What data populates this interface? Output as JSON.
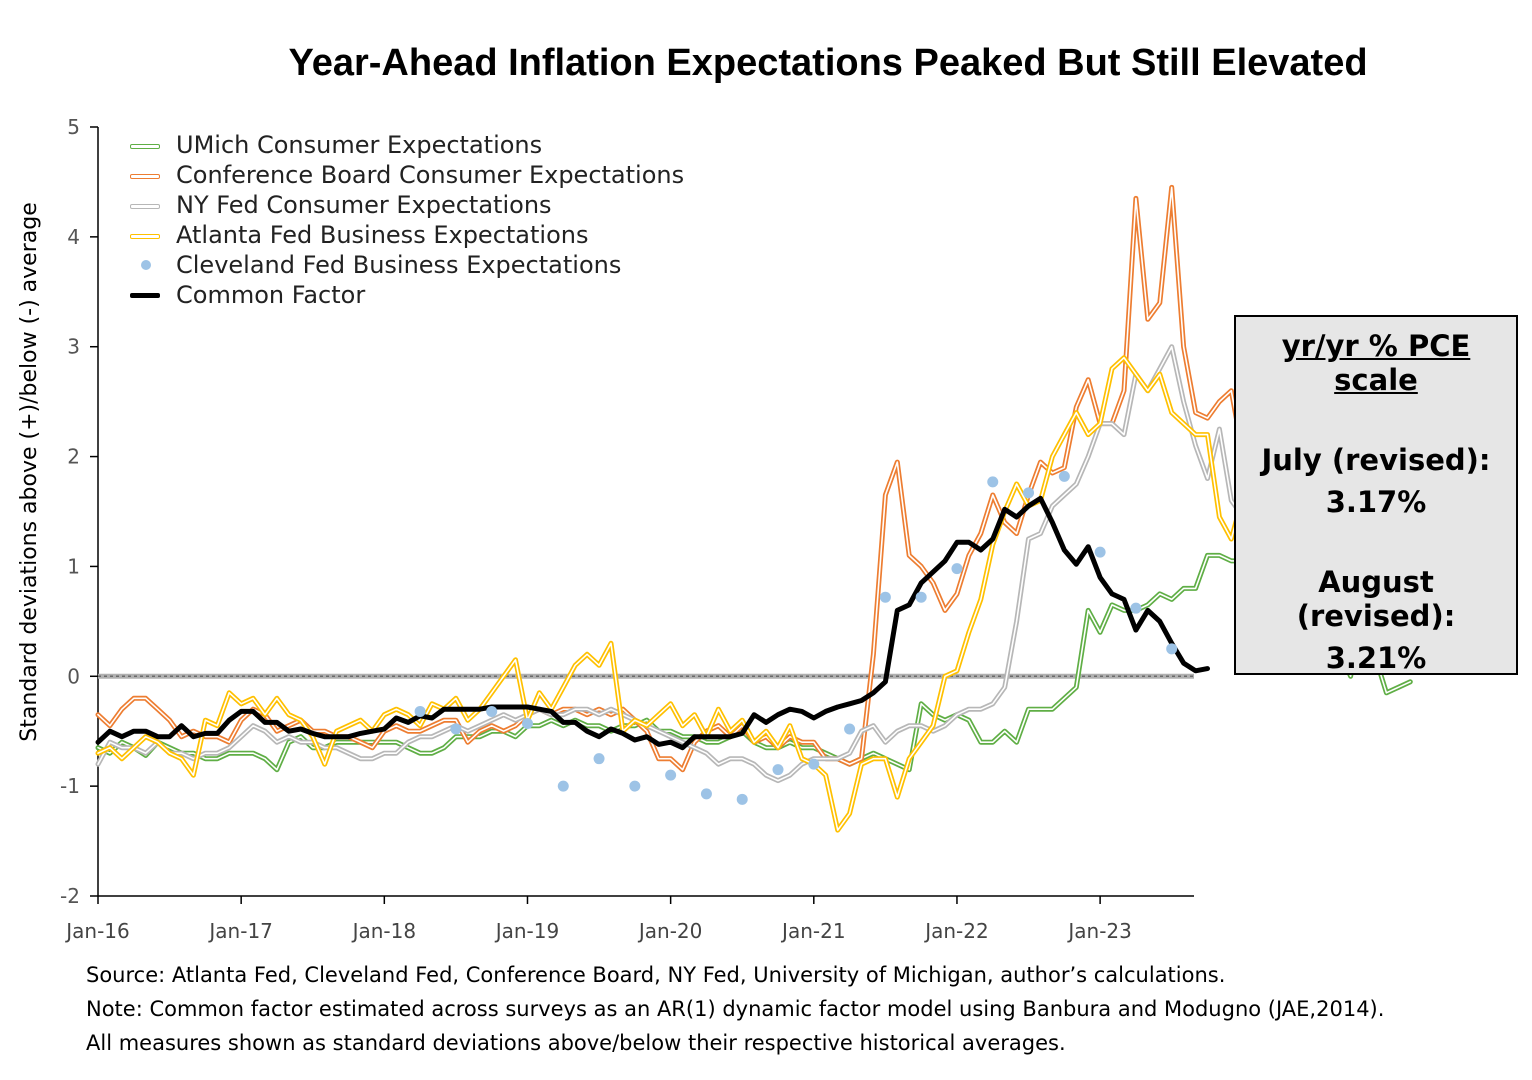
{
  "chart_data": {
    "type": "line",
    "title": "Year-Ahead Inflation Expectations Peaked But Still Elevated",
    "ylabel": "Standard deviations above (+)/below (-) average",
    "xlabel": "",
    "ylim": [
      -2,
      5
    ],
    "yticks": [
      5,
      4,
      3,
      2,
      1,
      0,
      -1,
      -2
    ],
    "x_start": "2016-01",
    "x_tick_labels": [
      "Jan-16",
      "Jan-17",
      "Jan-18",
      "Jan-19",
      "Jan-20",
      "Jan-21",
      "Jan-22",
      "Jan-23"
    ],
    "reference_line": 0,
    "legend_position": "top-left",
    "grid": false,
    "series": [
      {
        "name": "UMich Consumer Expectations",
        "color": "#5fae45",
        "style": "double-line",
        "values": [
          -0.65,
          -0.7,
          -0.6,
          -0.65,
          -0.72,
          -0.6,
          -0.65,
          -0.7,
          -0.7,
          -0.75,
          -0.75,
          -0.7,
          -0.7,
          -0.7,
          -0.75,
          -0.85,
          -0.6,
          -0.55,
          -0.65,
          -0.65,
          -0.6,
          -0.6,
          -0.6,
          -0.6,
          -0.6,
          -0.6,
          -0.65,
          -0.7,
          -0.7,
          -0.65,
          -0.55,
          -0.55,
          -0.55,
          -0.5,
          -0.5,
          -0.55,
          -0.45,
          -0.45,
          -0.4,
          -0.45,
          -0.4,
          -0.45,
          -0.45,
          -0.5,
          -0.45,
          -0.45,
          -0.4,
          -0.5,
          -0.5,
          -0.55,
          -0.55,
          -0.6,
          -0.6,
          -0.55,
          -0.5,
          -0.6,
          -0.65,
          -0.65,
          -0.6,
          -0.65,
          -0.65,
          -0.7,
          -0.75,
          -0.8,
          -0.75,
          -0.7,
          -0.75,
          -0.8,
          -0.85,
          -0.25,
          -0.35,
          -0.4,
          -0.35,
          -0.4,
          -0.6,
          -0.6,
          -0.5,
          -0.6,
          -0.3,
          -0.3,
          -0.3,
          -0.2,
          -0.1,
          0.6,
          0.4,
          0.65,
          0.6,
          0.6,
          0.65,
          0.75,
          0.7,
          0.8,
          0.8,
          1.1,
          1.1,
          1.05,
          1.05,
          1.0,
          0.75,
          0.7,
          0.85,
          0.8,
          0.5,
          0.2,
          0.25,
          0.0,
          0.6,
          0.2,
          -0.15,
          -0.1,
          -0.05
        ]
      },
      {
        "name": "Conference Board Consumer Expectations",
        "color": "#ed7d31",
        "style": "double-line",
        "values": [
          -0.35,
          -0.45,
          -0.3,
          -0.2,
          -0.2,
          -0.3,
          -0.4,
          -0.55,
          -0.5,
          -0.55,
          -0.55,
          -0.6,
          -0.4,
          -0.3,
          -0.35,
          -0.5,
          -0.45,
          -0.4,
          -0.5,
          -0.5,
          -0.55,
          -0.55,
          -0.6,
          -0.65,
          -0.5,
          -0.45,
          -0.5,
          -0.5,
          -0.45,
          -0.4,
          -0.4,
          -0.6,
          -0.5,
          -0.45,
          -0.5,
          -0.45,
          -0.35,
          -0.3,
          -0.35,
          -0.3,
          -0.3,
          -0.35,
          -0.3,
          -0.35,
          -0.3,
          -0.4,
          -0.5,
          -0.75,
          -0.75,
          -0.85,
          -0.6,
          -0.5,
          -0.45,
          -0.55,
          -0.45,
          -0.6,
          -0.55,
          -0.65,
          -0.55,
          -0.6,
          -0.6,
          -0.75,
          -0.75,
          -0.8,
          -0.75,
          0.2,
          1.65,
          1.95,
          1.1,
          1.0,
          0.85,
          0.6,
          0.75,
          1.1,
          1.3,
          1.65,
          1.4,
          1.3,
          1.65,
          1.95,
          1.85,
          1.9,
          2.45,
          2.7,
          2.3,
          2.3,
          2.6,
          4.35,
          3.25,
          3.4,
          4.45,
          3.0,
          2.4,
          2.35,
          2.5,
          2.6,
          2.0,
          2.2,
          1.5,
          1.7,
          1.6,
          1.2,
          0.9,
          0.75
        ]
      },
      {
        "name": "NY Fed Consumer Expectations",
        "color": "#b7b7b7",
        "style": "double-line",
        "values": [
          -0.8,
          -0.6,
          -0.65,
          -0.65,
          -0.7,
          -0.6,
          -0.7,
          -0.7,
          -0.75,
          -0.7,
          -0.7,
          -0.65,
          -0.55,
          -0.45,
          -0.5,
          -0.6,
          -0.55,
          -0.6,
          -0.6,
          -0.65,
          -0.65,
          -0.7,
          -0.75,
          -0.75,
          -0.7,
          -0.7,
          -0.6,
          -0.55,
          -0.55,
          -0.5,
          -0.45,
          -0.5,
          -0.45,
          -0.4,
          -0.35,
          -0.4,
          -0.35,
          -0.3,
          -0.35,
          -0.35,
          -0.3,
          -0.3,
          -0.35,
          -0.3,
          -0.35,
          -0.4,
          -0.45,
          -0.5,
          -0.55,
          -0.6,
          -0.65,
          -0.7,
          -0.8,
          -0.75,
          -0.75,
          -0.8,
          -0.9,
          -0.95,
          -0.9,
          -0.8,
          -0.75,
          -0.75,
          -0.75,
          -0.7,
          -0.5,
          -0.45,
          -0.6,
          -0.5,
          -0.45,
          -0.45,
          -0.5,
          -0.45,
          -0.35,
          -0.3,
          -0.3,
          -0.25,
          -0.1,
          0.5,
          1.25,
          1.3,
          1.55,
          1.65,
          1.75,
          2.0,
          2.3,
          2.3,
          2.2,
          2.75,
          2.6,
          2.8,
          3.0,
          2.5,
          2.1,
          1.8,
          2.25,
          1.6,
          1.45,
          1.4,
          0.8,
          1.2,
          0.9,
          0.5,
          0.35,
          0.2
        ]
      },
      {
        "name": "Atlanta Fed Business Expectations",
        "color": "#ffc000",
        "style": "double-line",
        "values": [
          -0.7,
          -0.65,
          -0.75,
          -0.65,
          -0.55,
          -0.6,
          -0.7,
          -0.75,
          -0.9,
          -0.4,
          -0.45,
          -0.15,
          -0.25,
          -0.2,
          -0.35,
          -0.2,
          -0.35,
          -0.4,
          -0.55,
          -0.8,
          -0.5,
          -0.45,
          -0.4,
          -0.5,
          -0.35,
          -0.3,
          -0.35,
          -0.45,
          -0.25,
          -0.3,
          -0.2,
          -0.4,
          -0.3,
          -0.15,
          0.0,
          0.15,
          -0.4,
          -0.15,
          -0.3,
          -0.1,
          0.1,
          0.2,
          0.1,
          0.3,
          -0.5,
          -0.4,
          -0.45,
          -0.35,
          -0.25,
          -0.45,
          -0.35,
          -0.55,
          -0.3,
          -0.5,
          -0.4,
          -0.6,
          -0.5,
          -0.65,
          -0.45,
          -0.75,
          -0.8,
          -0.9,
          -1.4,
          -1.25,
          -0.8,
          -0.75,
          -0.75,
          -1.1,
          -0.75,
          -0.6,
          -0.45,
          0.0,
          0.05,
          0.4,
          0.7,
          1.2,
          1.5,
          1.75,
          1.55,
          1.6,
          2.0,
          2.2,
          2.4,
          2.2,
          2.3,
          2.8,
          2.9,
          2.75,
          2.6,
          2.75,
          2.4,
          2.3,
          2.2,
          2.2,
          1.45,
          1.25,
          1.65,
          1.45,
          1.35,
          1.2,
          0.95,
          0.6
        ]
      },
      {
        "name": "Cleveland Fed Business Expectations",
        "color": "#9dc3e6",
        "style": "markers",
        "points": [
          [
            27,
            -0.32
          ],
          [
            30,
            -0.48
          ],
          [
            33,
            -0.32
          ],
          [
            36,
            -0.43
          ],
          [
            39,
            -1.0
          ],
          [
            42,
            -0.75
          ],
          [
            45,
            -1.0
          ],
          [
            48,
            -0.9
          ],
          [
            51,
            -1.07
          ],
          [
            54,
            -1.12
          ],
          [
            57,
            -0.85
          ],
          [
            60,
            -0.8
          ],
          [
            63,
            -0.48
          ],
          [
            66,
            0.72
          ],
          [
            69,
            0.72
          ],
          [
            72,
            0.98
          ],
          [
            75,
            1.77
          ],
          [
            78,
            1.67
          ],
          [
            81,
            1.82
          ],
          [
            84,
            1.13
          ],
          [
            87,
            0.62
          ],
          [
            90,
            0.25
          ]
        ]
      },
      {
        "name": "Common Factor",
        "color": "#000000",
        "style": "thick-line",
        "values": [
          -0.6,
          -0.5,
          -0.55,
          -0.5,
          -0.5,
          -0.55,
          -0.55,
          -0.45,
          -0.55,
          -0.52,
          -0.52,
          -0.4,
          -0.32,
          -0.32,
          -0.42,
          -0.42,
          -0.5,
          -0.48,
          -0.52,
          -0.55,
          -0.55,
          -0.55,
          -0.52,
          -0.5,
          -0.48,
          -0.38,
          -0.42,
          -0.36,
          -0.38,
          -0.3,
          -0.3,
          -0.3,
          -0.3,
          -0.28,
          -0.28,
          -0.28,
          -0.28,
          -0.3,
          -0.32,
          -0.42,
          -0.42,
          -0.5,
          -0.55,
          -0.48,
          -0.52,
          -0.58,
          -0.55,
          -0.62,
          -0.6,
          -0.65,
          -0.55,
          -0.55,
          -0.55,
          -0.55,
          -0.52,
          -0.35,
          -0.42,
          -0.35,
          -0.3,
          -0.32,
          -0.38,
          -0.32,
          -0.28,
          -0.25,
          -0.22,
          -0.15,
          -0.05,
          0.6,
          0.65,
          0.85,
          0.95,
          1.05,
          1.22,
          1.22,
          1.15,
          1.25,
          1.52,
          1.45,
          1.55,
          1.62,
          1.4,
          1.15,
          1.02,
          1.18,
          0.9,
          0.75,
          0.7,
          0.42,
          0.6,
          0.5,
          0.3,
          0.12,
          0.05,
          0.07
        ]
      }
    ]
  },
  "pce_box": {
    "heading": "yr/yr % PCE scale",
    "july_label": "July (revised):",
    "july_value": "3.17%",
    "august_label": "August (revised):",
    "august_value": "3.21%"
  },
  "notes": {
    "source": "Source: Atlanta Fed, Cleveland Fed, Conference Board, NY Fed, University of Michigan, author’s calculations.",
    "note": "Note: Common factor estimated  across surveys as an AR(1) dynamic factor model using Banbura and Modugno (JAE,2014).",
    "measures": "All measures shown as standard deviations above/below their respective historical averages."
  }
}
